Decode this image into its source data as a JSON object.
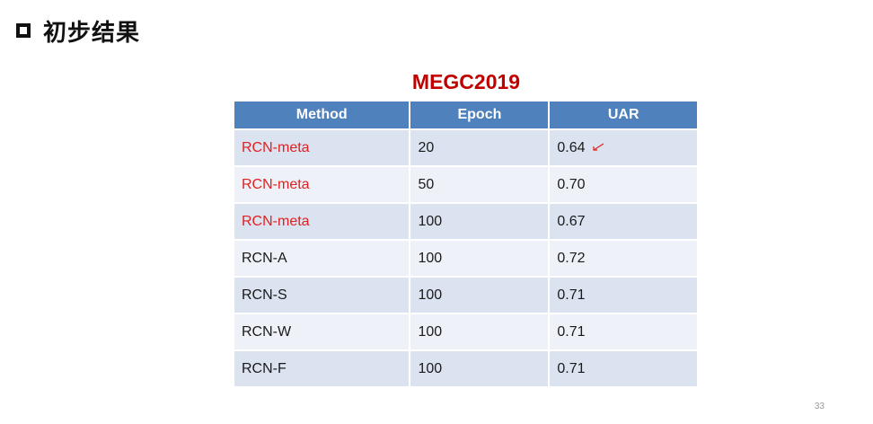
{
  "slide": {
    "heading": "初步结果",
    "page_number": "33"
  },
  "table": {
    "title": "MEGC2019",
    "headers": [
      "Method",
      "Epoch",
      "UAR"
    ],
    "rows": [
      {
        "method": "RCN-meta",
        "epoch": "20",
        "uar": "0.64",
        "highlight": true
      },
      {
        "method": "RCN-meta",
        "epoch": "50",
        "uar": "0.70",
        "highlight": true
      },
      {
        "method": "RCN-meta",
        "epoch": "100",
        "uar": "0.67",
        "highlight": true
      },
      {
        "method": "RCN-A",
        "epoch": "100",
        "uar": "0.72",
        "highlight": false
      },
      {
        "method": "RCN-S",
        "epoch": "100",
        "uar": "0.71",
        "highlight": false
      },
      {
        "method": "RCN-W",
        "epoch": "100",
        "uar": "0.71",
        "highlight": false
      },
      {
        "method": "RCN-F",
        "epoch": "100",
        "uar": "0.71",
        "highlight": false
      }
    ]
  },
  "colors": {
    "header_bg": "#4f81bd",
    "row_odd": "#dbe3f1",
    "row_even": "#eef2f8",
    "title_red": "#c00000",
    "highlight_red": "#e02020"
  },
  "icons": {
    "heading_bullet": "hollow-square-icon",
    "annotation": "red-arrow-icon"
  }
}
